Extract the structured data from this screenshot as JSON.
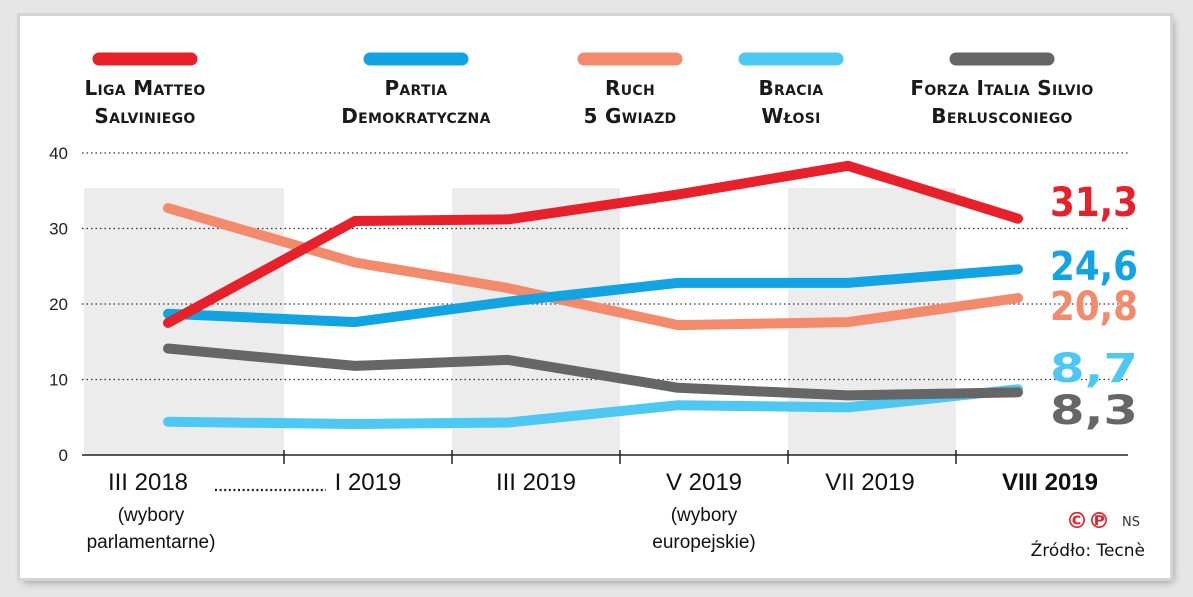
{
  "chart_data": {
    "type": "line",
    "title": "",
    "xlabel": "",
    "ylabel": "",
    "ylim": [
      0,
      40
    ],
    "yticks": [
      0,
      10,
      20,
      30,
      40
    ],
    "grid": "horizontal dotted",
    "legend_position": "top",
    "categories": [
      {
        "label": "III 2018",
        "note": [
          "(wybory",
          "parlamentarne)"
        ]
      },
      {
        "label": "I 2019",
        "note": []
      },
      {
        "label": "III 2019",
        "note": []
      },
      {
        "label": "V 2019",
        "note": [
          "(wybory",
          "europejskie)"
        ]
      },
      {
        "label": "VII 2019",
        "note": []
      },
      {
        "label": "VIII 2019",
        "note": [],
        "bold": true
      }
    ],
    "x": [
      0,
      1.1,
      2,
      3,
      4,
      5
    ],
    "series": [
      {
        "name": [
          "Liga Matteo",
          "Salviniego"
        ],
        "color": "#e8202a",
        "values": [
          17.5,
          31,
          31.2,
          34.5,
          38.3,
          31.3
        ],
        "end_label": "31,3"
      },
      {
        "name": [
          "Partia",
          "Demokratyczna"
        ],
        "color": "#12a3e3",
        "values": [
          18.7,
          17.6,
          20.3,
          22.8,
          22.8,
          24.6
        ],
        "end_label": "24,6"
      },
      {
        "name": [
          "Ruch",
          "5 Gwiazd"
        ],
        "color": "#f28a6b",
        "values": [
          32.7,
          25.5,
          22.1,
          17.2,
          17.6,
          20.8
        ],
        "end_label": "20,8"
      },
      {
        "name": [
          "Bracia",
          "Włosi"
        ],
        "color": "#4dc8f2",
        "values": [
          4.4,
          4.1,
          4.3,
          6.6,
          6.3,
          8.7
        ],
        "end_label": "8,7"
      },
      {
        "name": [
          "Forza Italia Silvio",
          "Berlusconiego"
        ],
        "color": "#666666",
        "values": [
          14.1,
          11.8,
          12.6,
          8.9,
          7.9,
          8.3
        ],
        "end_label": "8,3"
      }
    ]
  },
  "footer": {
    "copyright_mark": "©℗",
    "initials": "NS",
    "source": "Źródło: Tecnè"
  }
}
